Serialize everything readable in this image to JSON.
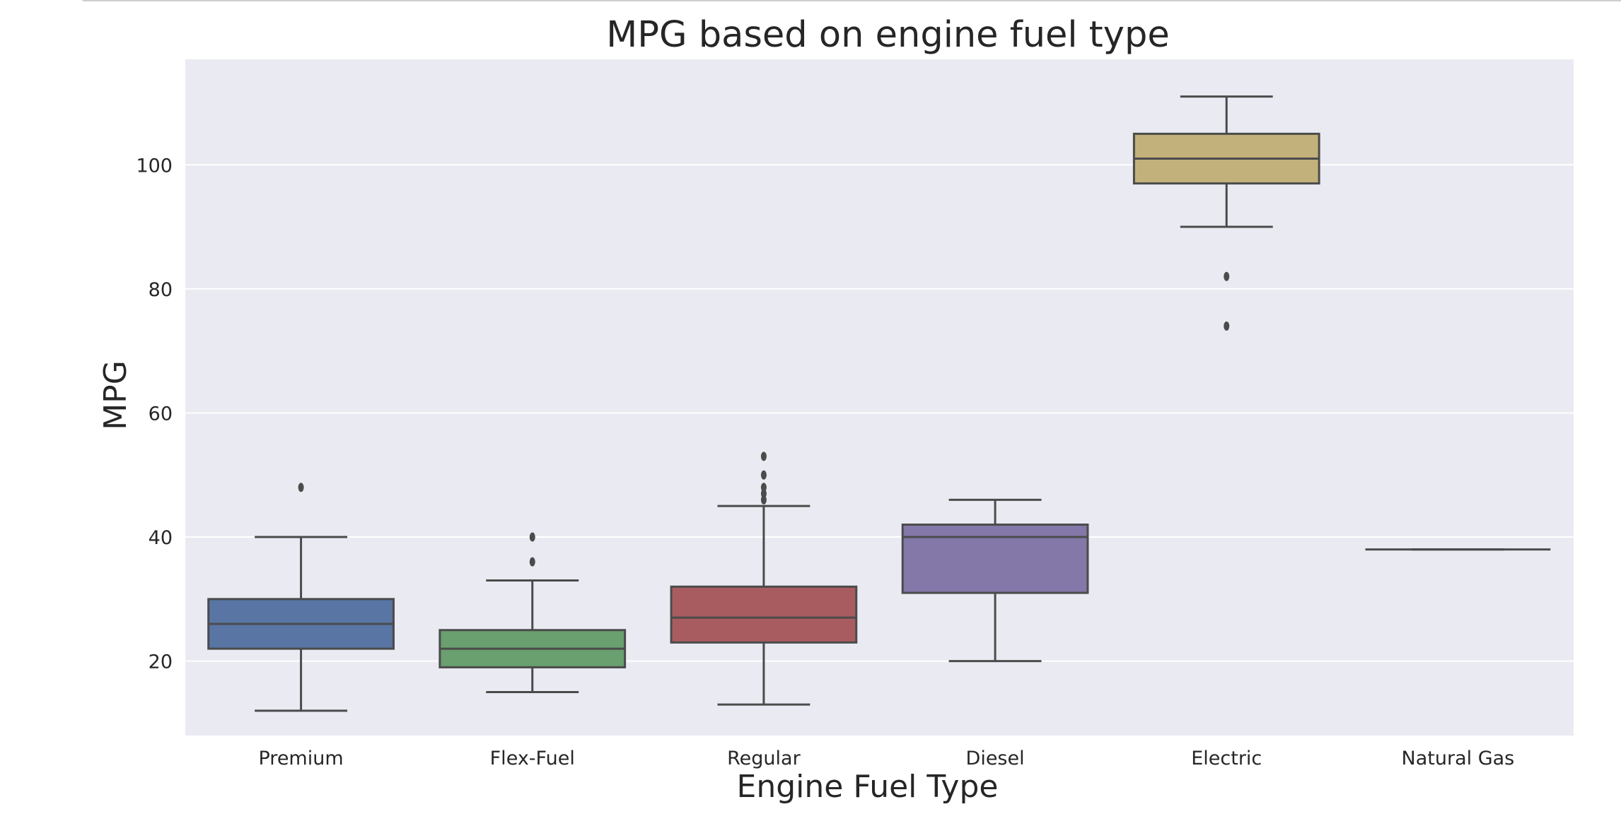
{
  "chart_data": {
    "type": "box",
    "title": "MPG based on engine fuel type",
    "xlabel": "Engine Fuel Type",
    "ylabel": "MPG",
    "ylim": [
      8,
      117
    ],
    "yticks": [
      20,
      40,
      60,
      80,
      100
    ],
    "grid": true,
    "categories": [
      "Premium",
      "Flex-Fuel",
      "Regular",
      "Diesel",
      "Electric",
      "Natural Gas"
    ],
    "boxes": [
      {
        "name": "Premium",
        "whislo": 12,
        "q1": 22,
        "med": 26,
        "q3": 30,
        "whishi": 40,
        "fliers": [
          48
        ],
        "color": "#5875A4"
      },
      {
        "name": "Flex-Fuel",
        "whislo": 15,
        "q1": 19,
        "med": 22,
        "q3": 25,
        "whishi": 33,
        "fliers": [
          36,
          40
        ],
        "color": "#6A9F70"
      },
      {
        "name": "Regular",
        "whislo": 13,
        "q1": 23,
        "med": 27,
        "q3": 32,
        "whishi": 45,
        "fliers": [
          46,
          47,
          48,
          50,
          53
        ],
        "color": "#A95C5F"
      },
      {
        "name": "Diesel",
        "whislo": 20,
        "q1": 31,
        "med": 40,
        "q3": 42,
        "whishi": 46,
        "fliers": [],
        "color": "#8378A8"
      },
      {
        "name": "Electric",
        "whislo": 90,
        "q1": 97,
        "med": 101,
        "q3": 105,
        "whishi": 111,
        "fliers": [
          74,
          82
        ],
        "color": "#C3B17B"
      },
      {
        "name": "Natural Gas",
        "whislo": 38,
        "q1": 38,
        "med": 38,
        "q3": 38,
        "whishi": 38,
        "fliers": [],
        "color": "#8AB8CA"
      }
    ],
    "background_color": "#EAEAF2",
    "grid_color": "#FFFFFF",
    "line_color": "#4B4B4B"
  }
}
